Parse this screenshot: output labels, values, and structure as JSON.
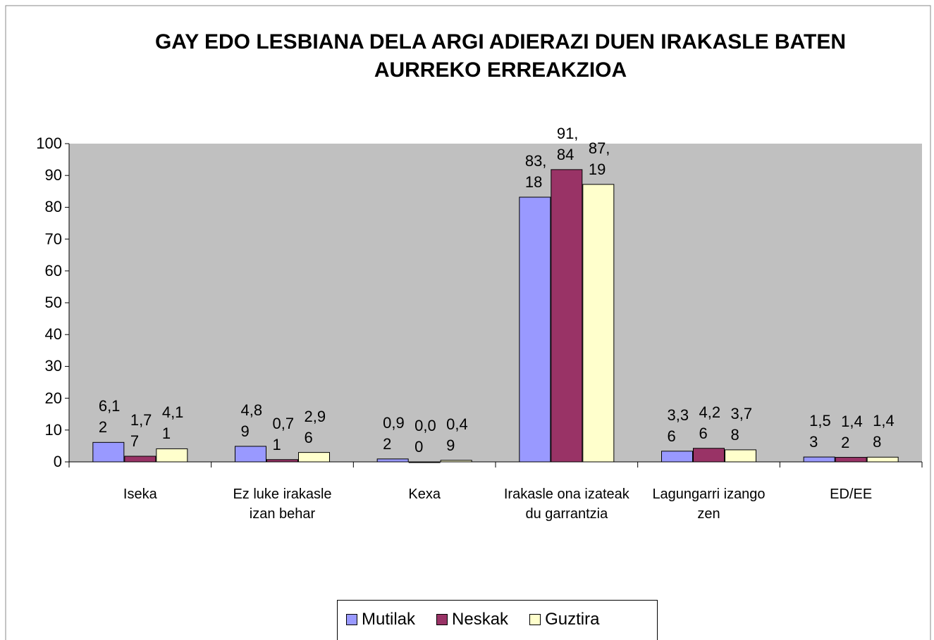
{
  "chart_data": {
    "type": "bar",
    "title": "GAY EDO LESBIANA DELA ARGI ADIERAZI DUEN IRAKASLE BATEN AURREKO ERREAKZIOA",
    "categories": [
      "Iseka",
      "Ez luke irakasle izan behar",
      "Kexa",
      "Irakasle ona izateak du garrantzia",
      "Lagungarri izango zen",
      "ED/EE"
    ],
    "series": [
      {
        "name": "Mutilak",
        "color": "#9999ff",
        "values": [
          6.12,
          4.89,
          0.92,
          83.18,
          3.36,
          1.53
        ],
        "value_labels": [
          "6,12",
          "4,89",
          "0,92",
          "83,18",
          "3,36",
          "1,53"
        ]
      },
      {
        "name": "Neskak",
        "color": "#993366",
        "values": [
          1.77,
          0.71,
          0,
          91.84,
          4.26,
          1.42
        ],
        "value_labels": [
          "1,77",
          "0,71",
          "0,00",
          "91,84",
          "4,26",
          "1,42"
        ]
      },
      {
        "name": "Guztira",
        "color": "#ffffcc",
        "values": [
          4.11,
          2.96,
          0.49,
          87.19,
          3.78,
          1.48
        ],
        "value_labels": [
          "4,11",
          "2,96",
          "0,49",
          "87,19",
          "3,78",
          "1,48"
        ]
      }
    ],
    "ylim": [
      0,
      100
    ],
    "yticks": [
      0,
      10,
      20,
      30,
      40,
      50,
      60,
      70,
      80,
      90,
      100
    ],
    "plot_background": "#c0c0c0",
    "legend": "bottom"
  }
}
